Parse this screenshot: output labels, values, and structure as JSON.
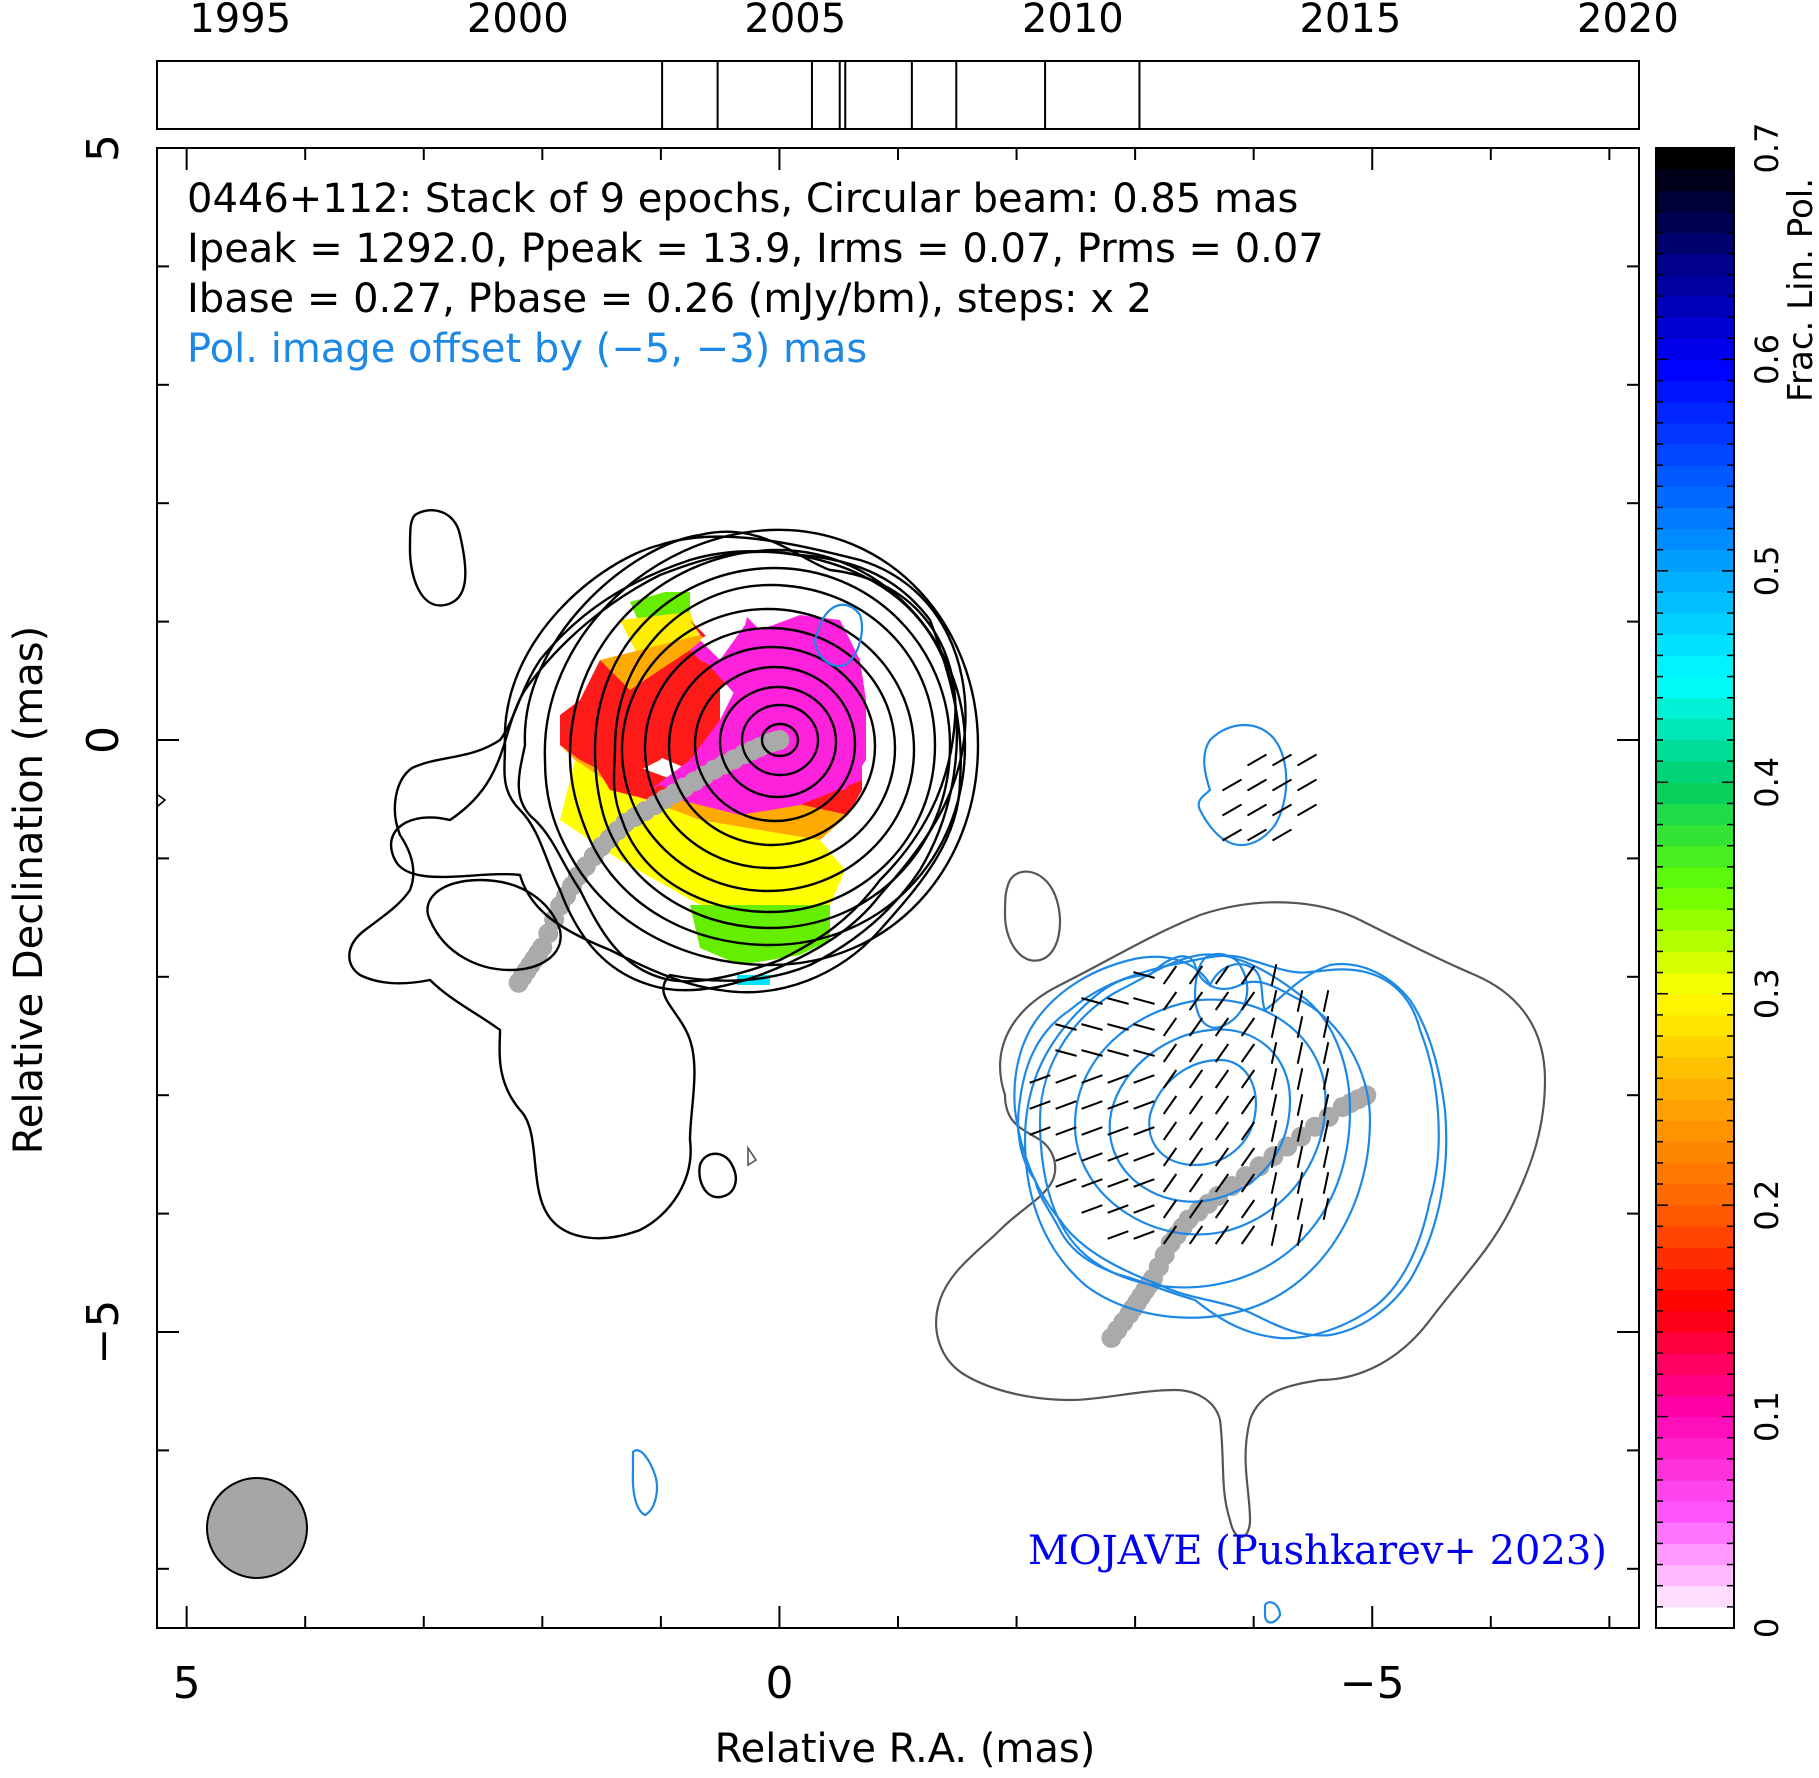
{
  "chart_data": {
    "type": "contour",
    "source": "0446+112",
    "info_lines": [
      "0446+112: Stack of 9 epochs, Circular beam: 0.85 mas",
      "Ipeak = 1292.0, Ppeak = 13.9, Irms = 0.07, Prms = 0.07",
      "Ibase = 0.27, Pbase = 0.26 (mJy/bm), steps: x 2"
    ],
    "pol_offset_note": "Pol. image offset by (−5, −3) mas",
    "credit": "MOJAVE (Pushkarev+ 2023)",
    "xlabel": "Relative R.A. (mas)",
    "ylabel": "Relative Declination (mas)",
    "colorbar_label": "Frac. Lin. Pol.",
    "xlim": [
      5.25,
      -7.25
    ],
    "ylim": [
      -7.5,
      5
    ],
    "x_ticks": [
      5,
      0,
      -5
    ],
    "x_tick_labels": [
      "5",
      "0",
      "−5"
    ],
    "y_ticks": [
      5,
      0,
      -5
    ],
    "y_tick_labels": [
      "5",
      "0",
      "−5"
    ],
    "colorbar_range": [
      0,
      0.7
    ],
    "colorbar_ticks": [
      0,
      0.1,
      0.2,
      0.3,
      0.4,
      0.5,
      0.6,
      0.7
    ],
    "colorbar_tick_labels": [
      "0",
      "0.1",
      "0.2",
      "0.3",
      "0.4",
      "0.5",
      "0.6",
      "0.7"
    ],
    "epoch_axis": {
      "range": [
        1993.5,
        2020.2
      ],
      "ticks": [
        1995,
        2000,
        2005,
        2010,
        2015,
        2020
      ],
      "tick_labels": [
        "1995",
        "2000",
        "2005",
        "2010",
        "2015",
        "2020"
      ],
      "epochs": [
        2002.6,
        2003.6,
        2005.3,
        2005.8,
        2005.9,
        2007.1,
        2007.9,
        2009.5,
        2011.2
      ]
    },
    "beam_mas": 0.85,
    "ridgeline_total": [
      [
        2.2,
        -2.05
      ],
      [
        2.1,
        -1.9
      ],
      [
        2.0,
        -1.75
      ],
      [
        1.85,
        -1.4
      ],
      [
        1.7,
        -1.15
      ],
      [
        1.5,
        -0.9
      ],
      [
        1.3,
        -0.7
      ],
      [
        1.05,
        -0.55
      ],
      [
        0.8,
        -0.4
      ],
      [
        0.55,
        -0.25
      ],
      [
        0.3,
        -0.12
      ],
      [
        0.1,
        -0.03
      ],
      [
        0,
        0
      ]
    ],
    "ridgeline_pol": [
      [
        -2.8,
        -5.05
      ],
      [
        -2.95,
        -4.85
      ],
      [
        -3.05,
        -4.7
      ],
      [
        -3.15,
        -4.55
      ],
      [
        -3.3,
        -4.25
      ],
      [
        -3.45,
        -4.05
      ],
      [
        -3.7,
        -3.85
      ],
      [
        -4.05,
        -3.6
      ],
      [
        -4.4,
        -3.35
      ],
      [
        -4.75,
        -3.1
      ],
      [
        -4.95,
        -3.0
      ]
    ],
    "fpol_colormap": [
      "#ffffff",
      "#ff55ff",
      "#ff00aa",
      "#ff0000",
      "#ff6600",
      "#ffaa00",
      "#ffff00",
      "#66ff00",
      "#00cc66",
      "#00ffff",
      "#00aaff",
      "#0055ff",
      "#0000ff",
      "#000088",
      "#000000"
    ]
  }
}
